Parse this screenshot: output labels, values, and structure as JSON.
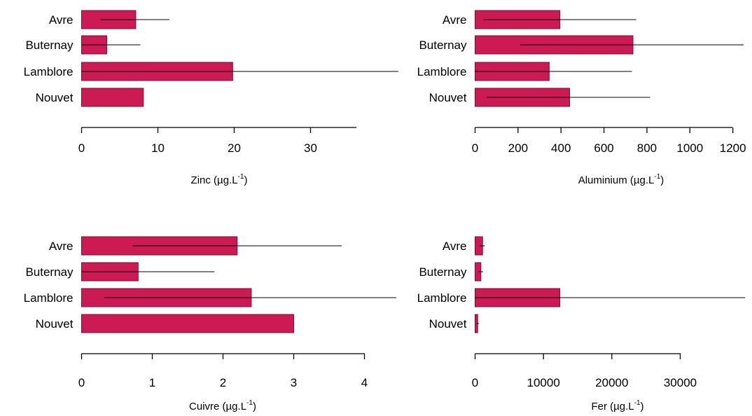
{
  "colors": {
    "bar_fill": "#cc1a55",
    "bar_stroke": "#7a0f33",
    "axis": "#000000",
    "error_bar": "#000000"
  },
  "chart_data": [
    {
      "type": "bar",
      "orientation": "horizontal",
      "categories": [
        "Avre",
        "Buternay",
        "Lamblore",
        "Nouvet"
      ],
      "values": [
        7.1,
        3.3,
        19.8,
        8.1
      ],
      "error_bars": [
        [
          2.5,
          11.5
        ],
        [
          0,
          7.7
        ],
        [
          0,
          41.5
        ],
        [
          null,
          null
        ]
      ],
      "xlabel": "Zinc (µg.L",
      "xlabel_superscript": "-1",
      "xlabel_suffix": ")",
      "ticks": [
        0,
        10,
        20,
        30
      ],
      "tick_labels": [
        "0",
        "10",
        "20",
        "30"
      ],
      "xlim": [
        0,
        36
      ]
    },
    {
      "type": "bar",
      "orientation": "horizontal",
      "categories": [
        "Avre",
        "Buternay",
        "Lamblore",
        "Nouvet"
      ],
      "values": [
        395,
        735,
        345,
        440
      ],
      "error_bars": [
        [
          40,
          750
        ],
        [
          210,
          1250
        ],
        [
          0,
          730
        ],
        [
          55,
          815
        ]
      ],
      "xlabel": "Aluminium (µg.L",
      "xlabel_superscript": "-1",
      "xlabel_suffix": ")",
      "ticks": [
        0,
        200,
        400,
        600,
        800,
        1000,
        1200
      ],
      "tick_labels": [
        "0",
        "200",
        "400",
        "600",
        "800",
        "1000",
        "1200"
      ],
      "xlim": [
        0,
        1200
      ]
    },
    {
      "type": "bar",
      "orientation": "horizontal",
      "categories": [
        "Avre",
        "Buternay",
        "Lamblore",
        "Nouvet"
      ],
      "values": [
        2.2,
        0.8,
        2.4,
        3.0
      ],
      "error_bars": [
        [
          0.72,
          3.68
        ],
        [
          0,
          1.88
        ],
        [
          0.32,
          4.45
        ],
        [
          null,
          null
        ]
      ],
      "xlabel": "Cuivre (µg.L",
      "xlabel_superscript": "-1",
      "xlabel_suffix": ")",
      "ticks": [
        0,
        1,
        2,
        3,
        4
      ],
      "tick_labels": [
        "0",
        "1",
        "2",
        "3",
        "4"
      ],
      "xlim": [
        0,
        4
      ]
    },
    {
      "type": "bar",
      "orientation": "horizontal",
      "categories": [
        "Avre",
        "Buternay",
        "Lamblore",
        "Nouvet"
      ],
      "values": [
        1100,
        850,
        12400,
        380
      ],
      "error_bars": [
        [
          700,
          1400
        ],
        [
          500,
          1150
        ],
        [
          0,
          39500
        ],
        [
          200,
          550
        ]
      ],
      "xlabel": "Fer (µg.L",
      "xlabel_superscript": "-1",
      "xlabel_suffix": ")",
      "ticks": [
        0,
        10000,
        20000,
        30000
      ],
      "tick_labels": [
        "0",
        "10000",
        "20000",
        "30000"
      ],
      "xlim": [
        0,
        30000
      ]
    }
  ]
}
